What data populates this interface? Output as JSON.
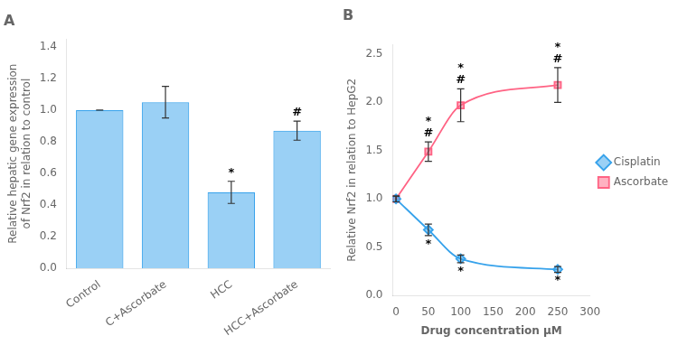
{
  "chart_data": [
    {
      "type": "bar",
      "title": "A",
      "categories": [
        "Control",
        "C+Ascorbate",
        "HCC",
        "HCC+Ascorbate"
      ],
      "values": [
        1.0,
        1.05,
        0.48,
        0.87
      ],
      "errors": [
        0.0,
        0.1,
        0.07,
        0.06
      ],
      "ylabel": "Relative hepatic gene expression\nof Nrf2 in relation to control",
      "ylim": [
        0,
        1.45
      ],
      "yticks": [
        {
          "value": 0,
          "label": "0.0"
        },
        {
          "value": 0.2,
          "label": "0.2"
        },
        {
          "value": 0.4,
          "label": "0.4"
        },
        {
          "value": 0.6,
          "label": "0.6"
        },
        {
          "value": 0.8,
          "label": "0.8"
        },
        {
          "value": 1.0,
          "label": "1.0"
        },
        {
          "value": 1.2,
          "label": "1.2"
        },
        {
          "value": 1.4,
          "label": "1.4"
        }
      ],
      "grid": false,
      "annotations": [
        {
          "category": "HCC",
          "text": "*"
        },
        {
          "category": "HCC+Ascorbate",
          "text": "#"
        }
      ]
    },
    {
      "type": "line",
      "title": "B",
      "x": [
        0,
        50,
        100,
        250
      ],
      "series": [
        {
          "name": "Cisplatin",
          "values": [
            1.0,
            0.68,
            0.38,
            0.27
          ],
          "errors": [
            0.03,
            0.06,
            0.04,
            0.03
          ],
          "marker": "diamond"
        },
        {
          "name": "Ascorbate",
          "values": [
            1.0,
            1.49,
            1.97,
            2.18
          ],
          "errors": [
            0.03,
            0.1,
            0.17,
            0.18
          ],
          "marker": "square"
        }
      ],
      "xlabel": "Drug concentration μM",
      "ylabel": "Relative Nrf2 in relation to HepG2",
      "xlim": [
        -5,
        300
      ],
      "xticks": [
        0,
        50,
        100,
        150,
        200,
        250,
        300
      ],
      "ylim": [
        0,
        2.6
      ],
      "yticks": [
        {
          "value": 0,
          "label": "0.0"
        },
        {
          "value": 0.5,
          "label": "0.5"
        },
        {
          "value": 1.0,
          "label": "1.0"
        },
        {
          "value": 1.5,
          "label": "1.5"
        },
        {
          "value": 2.0,
          "label": "2.0"
        },
        {
          "value": 2.5,
          "label": "2.5"
        }
      ],
      "grid": false,
      "legend": "right",
      "annotations": [
        {
          "series": "Cisplatin",
          "x": 50,
          "text": "*"
        },
        {
          "series": "Cisplatin",
          "x": 100,
          "text": "*"
        },
        {
          "series": "Cisplatin",
          "x": 250,
          "text": "*"
        },
        {
          "series": "Ascorbate",
          "x": 50,
          "text": "*"
        },
        {
          "series": "Ascorbate",
          "x": 50,
          "text": "#"
        },
        {
          "series": "Ascorbate",
          "x": 100,
          "text": "*"
        },
        {
          "series": "Ascorbate",
          "x": 100,
          "text": "#"
        },
        {
          "series": "Ascorbate",
          "x": 250,
          "text": "*"
        },
        {
          "series": "Ascorbate",
          "x": 250,
          "text": "#"
        }
      ]
    }
  ]
}
